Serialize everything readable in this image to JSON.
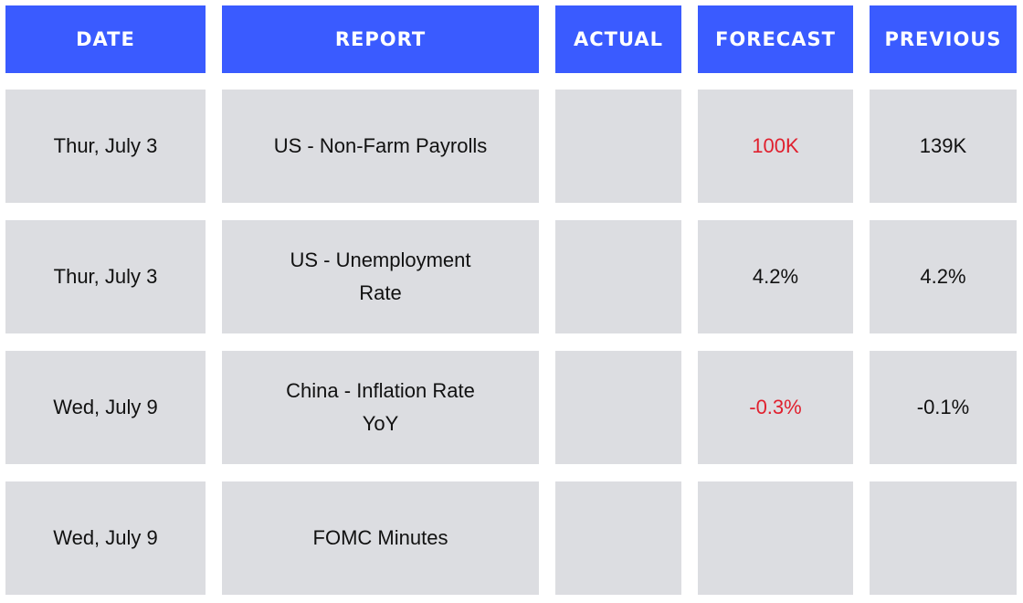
{
  "table": {
    "header": [
      "DATE",
      "REPORT",
      "ACTUAL",
      "FORECAST",
      "PREVIOUS"
    ],
    "header_color": "#3a5bff",
    "cell_color": "#dcdde1",
    "rows": [
      [
        "Thur, July 3",
        "US - Non-Farm Payrolls",
        null,
        {
          "text": "100K",
          "color": "#e0202e"
        },
        "139K"
      ],
      [
        "Thur, July 3",
        "US - Unemployment Rate",
        null,
        "4.2%",
        "4.2%"
      ],
      [
        "Wed, July 9",
        "China - Inflation Rate YoY",
        null,
        {
          "text": "-0.3%",
          "color": "#e0202e"
        },
        "-0.1%"
      ],
      [
        "Wed, July 9",
        "FOMC Minutes",
        null,
        null,
        null
      ]
    ]
  }
}
